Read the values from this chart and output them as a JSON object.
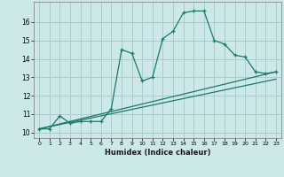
{
  "xlabel": "Humidex (Indice chaleur)",
  "background_color": "#cce8e8",
  "grid_color": "#aacccc",
  "line_color": "#1a7a6a",
  "xlim": [
    -0.5,
    23.5
  ],
  "ylim": [
    9.7,
    17.1
  ],
  "xticks": [
    0,
    1,
    2,
    3,
    4,
    5,
    6,
    7,
    8,
    9,
    10,
    11,
    12,
    13,
    14,
    15,
    16,
    17,
    18,
    19,
    20,
    21,
    22,
    23
  ],
  "yticks": [
    10,
    11,
    12,
    13,
    14,
    15,
    16
  ],
  "series1_x": [
    0,
    1,
    2,
    3,
    4,
    5,
    6,
    7,
    8,
    9,
    10,
    11,
    12,
    13,
    14,
    15,
    16,
    17,
    18,
    19,
    20,
    21,
    22,
    23
  ],
  "series1_y": [
    10.2,
    10.2,
    10.9,
    10.5,
    10.6,
    10.6,
    10.6,
    11.3,
    14.5,
    14.3,
    12.8,
    13.0,
    15.1,
    15.5,
    16.5,
    16.6,
    16.6,
    15.0,
    14.8,
    14.2,
    14.1,
    13.3,
    13.2,
    13.3
  ],
  "series2_x": [
    0,
    23
  ],
  "series2_y": [
    10.2,
    13.3
  ],
  "series3_x": [
    0,
    23
  ],
  "series3_y": [
    10.2,
    12.9
  ]
}
